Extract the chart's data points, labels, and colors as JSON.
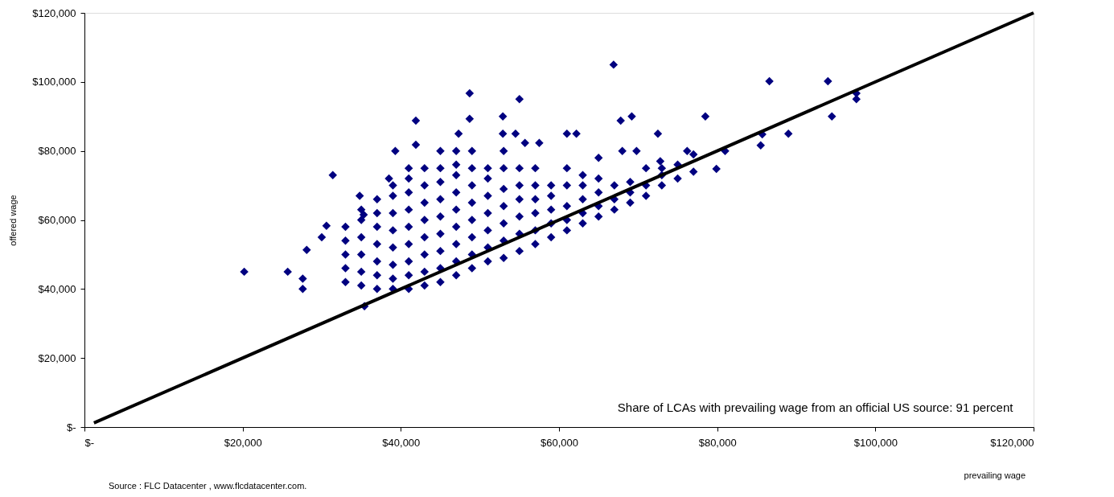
{
  "chart_data": {
    "type": "scatter",
    "xlabel": "prevailing wage",
    "ylabel": "offered wage",
    "annotations": [
      "Share of LCAs with prevailing wage from an official US source: 91 percent",
      "Source : FLC Datacenter ,  www.flcdatacenter.com."
    ],
    "xlim": [
      0,
      120000
    ],
    "ylim": [
      0,
      120000
    ],
    "xticks": [
      {
        "value": 0,
        "label": "$-"
      },
      {
        "value": 20000,
        "label": "$20,000"
      },
      {
        "value": 40000,
        "label": "$40,000"
      },
      {
        "value": 60000,
        "label": "$60,000"
      },
      {
        "value": 80000,
        "label": "$80,000"
      },
      {
        "value": 100000,
        "label": "$100,000"
      },
      {
        "value": 120000,
        "label": "$120,000"
      }
    ],
    "yticks": [
      {
        "value": 0,
        "label": "$-"
      },
      {
        "value": 20000,
        "label": "$20,000"
      },
      {
        "value": 40000,
        "label": "$40,000"
      },
      {
        "value": 60000,
        "label": "$60,000"
      },
      {
        "value": 80000,
        "label": "$80,000"
      },
      {
        "value": 100000,
        "label": "$100,000"
      },
      {
        "value": 120000,
        "label": "$120,000"
      }
    ],
    "grid": false,
    "legend": false,
    "series": [
      {
        "marker": "diamond",
        "color": "#000080",
        "x": [
          20200,
          25700,
          27600,
          27600,
          28100,
          30000,
          30600,
          31400,
          34800,
          35400,
          35300,
          39300,
          38500,
          41900,
          41900,
          48700,
          48700,
          47300,
          52900,
          52900,
          55000,
          54500,
          55700,
          57500,
          61000,
          62200,
          66900,
          67800,
          69200,
          68000,
          69800,
          72500,
          72800,
          76200,
          78500,
          79900,
          81000,
          85700,
          85500,
          86600,
          89000,
          94000,
          94500,
          97600,
          97600,
          33000,
          33000,
          33000,
          33000,
          33000,
          35000,
          35000,
          35000,
          35000,
          35000,
          35000,
          37000,
          37000,
          37000,
          37000,
          37000,
          37000,
          37000,
          39000,
          39000,
          39000,
          39000,
          39000,
          39000,
          39000,
          39000,
          41000,
          41000,
          41000,
          41000,
          41000,
          41000,
          41000,
          41000,
          41000,
          43000,
          43000,
          43000,
          43000,
          43000,
          43000,
          43000,
          43000,
          45000,
          45000,
          45000,
          45000,
          45000,
          45000,
          45000,
          45000,
          45000,
          47000,
          47000,
          47000,
          47000,
          47000,
          47000,
          47000,
          47000,
          47000,
          49000,
          49000,
          49000,
          49000,
          49000,
          49000,
          49000,
          49000,
          51000,
          51000,
          51000,
          51000,
          51000,
          51000,
          51000,
          53000,
          53000,
          53000,
          53000,
          53000,
          53000,
          53000,
          55000,
          55000,
          55000,
          55000,
          55000,
          55000,
          57000,
          57000,
          57000,
          57000,
          57000,
          57000,
          59000,
          59000,
          59000,
          59000,
          59000,
          61000,
          61000,
          61000,
          61000,
          61000,
          63000,
          63000,
          63000,
          63000,
          63000,
          65000,
          65000,
          65000,
          65000,
          65000,
          67000,
          67000,
          67000,
          69000,
          69000,
          69000,
          71000,
          71000,
          71000,
          73000,
          73000,
          73000,
          75000,
          75000,
          77000,
          77000
        ],
        "values": [
          45000,
          45000,
          40000,
          43000,
          51300,
          55000,
          58300,
          73000,
          67000,
          35000,
          61500,
          80000,
          72000,
          88800,
          81800,
          96700,
          89300,
          85000,
          90000,
          85000,
          95000,
          85000,
          82300,
          82300,
          85000,
          85000,
          105000,
          88800,
          90000,
          80000,
          80000,
          85000,
          77000,
          80000,
          90000,
          74800,
          80000,
          84800,
          81600,
          100200,
          85000,
          100200,
          90000,
          96700,
          95000,
          42000,
          46000,
          50000,
          54000,
          58000,
          41000,
          45000,
          50000,
          55000,
          60000,
          63000,
          40000,
          44000,
          48000,
          53000,
          58000,
          62000,
          66000,
          40000,
          43000,
          47000,
          52000,
          57000,
          62000,
          67000,
          70000,
          40000,
          44000,
          48000,
          53000,
          58000,
          63000,
          68000,
          72000,
          75000,
          41000,
          45000,
          50000,
          55000,
          60000,
          65000,
          70000,
          75000,
          42000,
          46000,
          51000,
          56000,
          61000,
          66000,
          71000,
          75000,
          80000,
          44000,
          48000,
          53000,
          58000,
          63000,
          68000,
          73000,
          76000,
          80000,
          46000,
          50000,
          55000,
          60000,
          65000,
          70000,
          75000,
          80000,
          48000,
          52000,
          57000,
          62000,
          67000,
          72000,
          75000,
          49000,
          54000,
          59000,
          64000,
          69000,
          75000,
          80000,
          51000,
          56000,
          61000,
          66000,
          70000,
          75000,
          53000,
          57000,
          62000,
          66000,
          70000,
          75000,
          55000,
          59000,
          63000,
          67000,
          70000,
          57000,
          60000,
          64000,
          70000,
          75000,
          59000,
          62000,
          66000,
          70000,
          73000,
          61000,
          64000,
          68000,
          72000,
          78000,
          63000,
          66000,
          70000,
          65000,
          68000,
          71000,
          67000,
          70000,
          75000,
          70000,
          73000,
          75000,
          72000,
          76000,
          74000,
          79000
        ]
      },
      {
        "type": "line",
        "color": "#000000",
        "x": [
          1200,
          120000
        ],
        "values": [
          1200,
          120000
        ]
      }
    ]
  }
}
